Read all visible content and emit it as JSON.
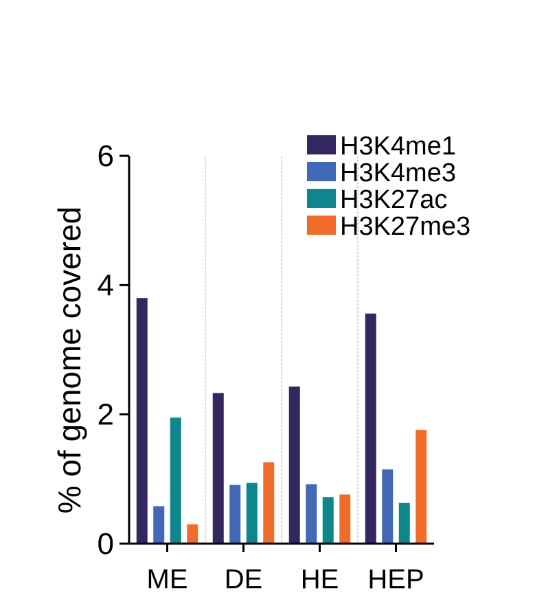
{
  "chart_data": {
    "type": "bar",
    "title": "",
    "xlabel": "",
    "ylabel": "% of genome covered",
    "ylim": [
      0,
      6
    ],
    "yticks": [
      "0",
      "2",
      "4",
      "6"
    ],
    "categories": [
      "ME",
      "DE",
      "HE",
      "HEP"
    ],
    "series": [
      {
        "name": "H3K4me1",
        "color": "#34275f",
        "values": [
          3.8,
          2.33,
          2.43,
          3.56
        ]
      },
      {
        "name": "H3K4me3",
        "color": "#4169b7",
        "values": [
          0.58,
          0.91,
          0.92,
          1.15
        ]
      },
      {
        "name": "H3K27ac",
        "color": "#0e878c",
        "values": [
          1.95,
          0.94,
          0.72,
          0.63
        ]
      },
      {
        "name": "H3K27me3",
        "color": "#f06c2a",
        "values": [
          0.3,
          1.26,
          0.76,
          1.76
        ]
      }
    ],
    "legend_position": "top-right",
    "grid": false,
    "category_separators": true
  }
}
